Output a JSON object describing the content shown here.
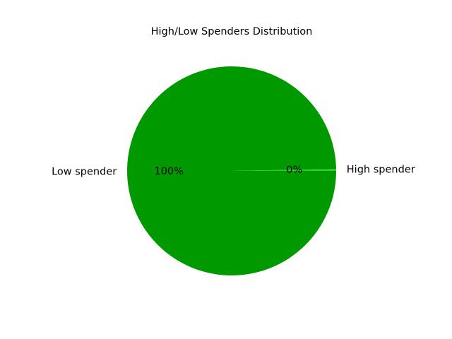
{
  "chart_data": {
    "type": "pie",
    "title": "High/Low Spenders Distribution",
    "slices": [
      {
        "label": "High spender",
        "value": 0.3,
        "pct_label": "0%",
        "color": "#2ecc2e"
      },
      {
        "label": "Low spender",
        "value": 99.7,
        "pct_label": "100%",
        "color": "#009900"
      }
    ]
  }
}
